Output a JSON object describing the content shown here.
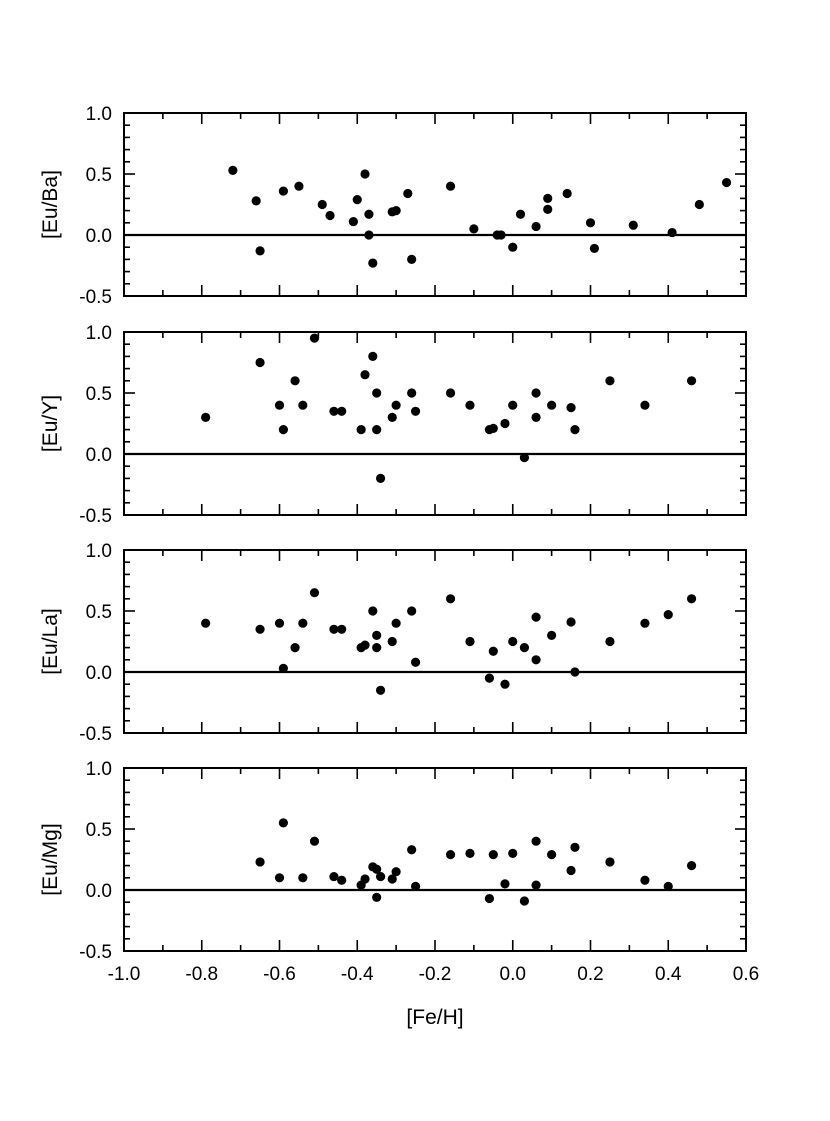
{
  "chart_data": {
    "type": "scatter",
    "xlabel": "[Fe/H]",
    "x_ticks": [
      "-1.0",
      "-0.8",
      "-0.6",
      "-0.4",
      "-0.2",
      "0.0",
      "0.2",
      "0.4",
      "0.6"
    ],
    "xlim": [
      -1.0,
      0.6
    ],
    "y_ticks": [
      "1.0",
      "0.5",
      "0.0",
      "-0.5"
    ],
    "ylim": [
      -0.5,
      1.0
    ],
    "reference_line_y": 0.0,
    "panels": [
      {
        "ylabel": "[Eu/Ba]",
        "points": [
          [
            -0.72,
            0.53
          ],
          [
            -0.66,
            0.28
          ],
          [
            -0.65,
            -0.13
          ],
          [
            -0.59,
            0.36
          ],
          [
            -0.55,
            0.4
          ],
          [
            -0.49,
            0.25
          ],
          [
            -0.47,
            0.16
          ],
          [
            -0.41,
            0.11
          ],
          [
            -0.4,
            0.29
          ],
          [
            -0.38,
            0.5
          ],
          [
            -0.37,
            0.0
          ],
          [
            -0.37,
            0.17
          ],
          [
            -0.36,
            -0.23
          ],
          [
            -0.31,
            0.19
          ],
          [
            -0.3,
            0.2
          ],
          [
            -0.27,
            0.34
          ],
          [
            -0.26,
            -0.2
          ],
          [
            -0.16,
            0.4
          ],
          [
            -0.1,
            0.05
          ],
          [
            -0.04,
            0.0
          ],
          [
            -0.03,
            0.0
          ],
          [
            0.0,
            -0.1
          ],
          [
            0.02,
            0.17
          ],
          [
            0.06,
            0.07
          ],
          [
            0.09,
            0.3
          ],
          [
            0.09,
            0.21
          ],
          [
            0.14,
            0.34
          ],
          [
            0.2,
            0.1
          ],
          [
            0.21,
            -0.11
          ],
          [
            0.31,
            0.08
          ],
          [
            0.41,
            0.02
          ],
          [
            0.48,
            0.25
          ],
          [
            0.55,
            0.43
          ]
        ]
      },
      {
        "ylabel": "[Eu/Y]",
        "points": [
          [
            -0.79,
            0.3
          ],
          [
            -0.65,
            0.75
          ],
          [
            -0.6,
            0.4
          ],
          [
            -0.59,
            0.2
          ],
          [
            -0.56,
            0.6
          ],
          [
            -0.54,
            0.4
          ],
          [
            -0.51,
            0.95
          ],
          [
            -0.46,
            0.35
          ],
          [
            -0.44,
            0.35
          ],
          [
            -0.39,
            0.2
          ],
          [
            -0.38,
            0.65
          ],
          [
            -0.36,
            0.8
          ],
          [
            -0.35,
            0.5
          ],
          [
            -0.35,
            0.2
          ],
          [
            -0.34,
            -0.2
          ],
          [
            -0.31,
            0.3
          ],
          [
            -0.3,
            0.4
          ],
          [
            -0.26,
            0.5
          ],
          [
            -0.25,
            0.35
          ],
          [
            -0.16,
            0.5
          ],
          [
            -0.11,
            0.4
          ],
          [
            -0.06,
            0.2
          ],
          [
            -0.05,
            0.21
          ],
          [
            -0.02,
            0.25
          ],
          [
            0.0,
            0.4
          ],
          [
            0.03,
            -0.03
          ],
          [
            0.06,
            0.5
          ],
          [
            0.06,
            0.3
          ],
          [
            0.1,
            0.4
          ],
          [
            0.15,
            0.38
          ],
          [
            0.16,
            0.2
          ],
          [
            0.25,
            0.6
          ],
          [
            0.34,
            0.4
          ],
          [
            0.46,
            0.6
          ]
        ]
      },
      {
        "ylabel": "[Eu/La]",
        "points": [
          [
            -0.79,
            0.4
          ],
          [
            -0.65,
            0.35
          ],
          [
            -0.6,
            0.4
          ],
          [
            -0.59,
            0.03
          ],
          [
            -0.56,
            0.2
          ],
          [
            -0.54,
            0.4
          ],
          [
            -0.51,
            0.65
          ],
          [
            -0.46,
            0.35
          ],
          [
            -0.44,
            0.35
          ],
          [
            -0.39,
            0.2
          ],
          [
            -0.38,
            0.22
          ],
          [
            -0.36,
            0.5
          ],
          [
            -0.35,
            0.3
          ],
          [
            -0.35,
            0.2
          ],
          [
            -0.34,
            -0.15
          ],
          [
            -0.31,
            0.25
          ],
          [
            -0.3,
            0.4
          ],
          [
            -0.26,
            0.5
          ],
          [
            -0.25,
            0.08
          ],
          [
            -0.16,
            0.6
          ],
          [
            -0.11,
            0.25
          ],
          [
            -0.06,
            -0.05
          ],
          [
            -0.05,
            0.17
          ],
          [
            -0.02,
            -0.1
          ],
          [
            0.0,
            0.25
          ],
          [
            0.03,
            0.2
          ],
          [
            0.06,
            0.45
          ],
          [
            0.06,
            0.1
          ],
          [
            0.1,
            0.3
          ],
          [
            0.15,
            0.41
          ],
          [
            0.16,
            0.0
          ],
          [
            0.25,
            0.25
          ],
          [
            0.34,
            0.4
          ],
          [
            0.4,
            0.47
          ],
          [
            0.46,
            0.6
          ]
        ]
      },
      {
        "ylabel": "[Eu/Mg]",
        "points": [
          [
            -0.65,
            0.23
          ],
          [
            -0.6,
            0.1
          ],
          [
            -0.59,
            0.55
          ],
          [
            -0.54,
            0.1
          ],
          [
            -0.51,
            0.4
          ],
          [
            -0.46,
            0.11
          ],
          [
            -0.44,
            0.08
          ],
          [
            -0.39,
            0.04
          ],
          [
            -0.38,
            0.09
          ],
          [
            -0.36,
            0.19
          ],
          [
            -0.35,
            0.17
          ],
          [
            -0.35,
            -0.06
          ],
          [
            -0.34,
            0.11
          ],
          [
            -0.31,
            0.09
          ],
          [
            -0.3,
            0.15
          ],
          [
            -0.26,
            0.33
          ],
          [
            -0.25,
            0.03
          ],
          [
            -0.16,
            0.29
          ],
          [
            -0.11,
            0.3
          ],
          [
            -0.06,
            -0.07
          ],
          [
            -0.05,
            0.29
          ],
          [
            -0.02,
            0.05
          ],
          [
            0.0,
            0.3
          ],
          [
            0.03,
            -0.09
          ],
          [
            0.06,
            0.4
          ],
          [
            0.06,
            0.04
          ],
          [
            0.1,
            0.29
          ],
          [
            0.15,
            0.16
          ],
          [
            0.16,
            0.35
          ],
          [
            0.25,
            0.23
          ],
          [
            0.34,
            0.08
          ],
          [
            0.4,
            0.03
          ],
          [
            0.46,
            0.2
          ]
        ]
      }
    ]
  }
}
